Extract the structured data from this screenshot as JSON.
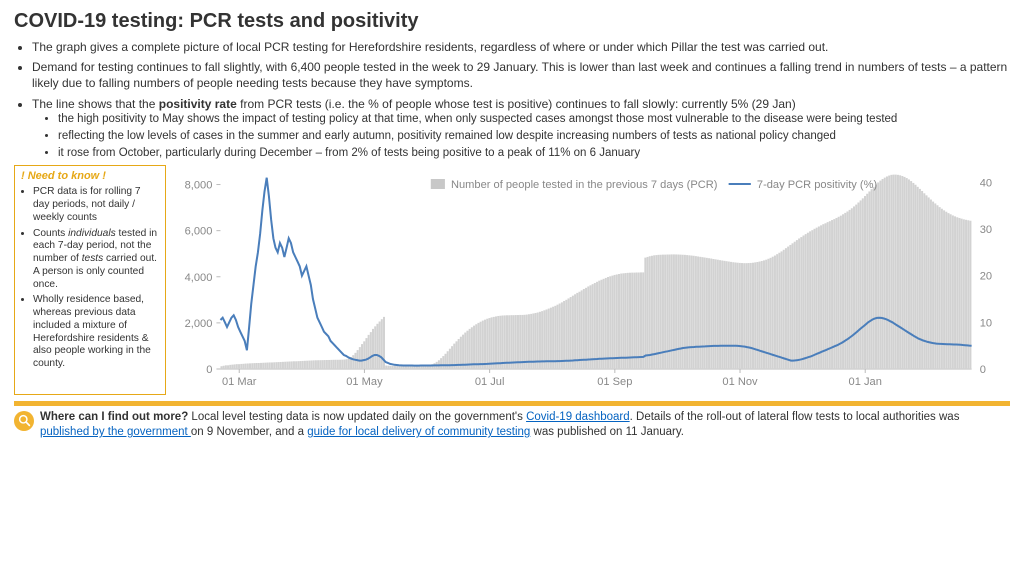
{
  "title": "COVID-19 testing: PCR tests and positivity",
  "bullets": {
    "b1": "The graph gives a complete picture of local PCR testing for Herefordshire residents, regardless of where or under which Pillar the test was carried out.",
    "b2": "Demand for testing continues to fall slightly, with 6,400 people tested in the week to 29 January.  This is lower than last week and continues a falling trend in numbers of tests – a pattern likely due to falling numbers of people needing tests because they have symptoms.",
    "b3_pre": "The line shows that the ",
    "b3_bold": "positivity rate",
    "b3_post": " from PCR tests (i.e. the % of people whose test is positive) continues to fall slowly: currently 5% (29 Jan)",
    "s1": "the high positivity to May shows the impact of testing policy at that time, when only suspected cases amongst those most vulnerable to the disease were being tested",
    "s2": "reflecting the low levels of cases in the summer and early autumn, positivity remained low despite increasing numbers of tests as national policy changed",
    "s3": "it rose from October, particularly during December – from 2% of tests being positive to a peak of 11% on 6 January"
  },
  "needbox": {
    "title": "! Need to know !",
    "n1": "PCR data is for rolling 7 day periods, not daily / weekly counts",
    "n2_pre": "Counts ",
    "n2_em1": "individuals",
    "n2_mid": " tested in each 7-day period, not the number of ",
    "n2_em2": "tests",
    "n2_post": " carried out. A person is only counted once.",
    "n3": "Wholly residence based, whereas previous data included a mixture of Herefordshire residents & also people working in the county."
  },
  "chart": {
    "legend_bars": "Number of people tested in the previous 7 days (PCR)",
    "legend_line": "7-day PCR positivity (%)",
    "y_left_ticks": [
      "0",
      "2,000",
      "4,000",
      "6,000",
      "8,000"
    ],
    "y_left_max": 8500,
    "y_right_ticks": [
      "0",
      "10",
      "20",
      "30",
      "40"
    ],
    "y_right_max": 42,
    "x_labels": [
      "01 Mar",
      "01 May",
      "01 Jul",
      "01 Sep",
      "01 Nov",
      "01 Jan"
    ],
    "bar_vals": [
      120,
      140,
      160,
      160,
      180,
      190,
      200,
      210,
      210,
      220,
      225,
      235,
      240,
      245,
      250,
      255,
      260,
      260,
      265,
      270,
      275,
      280,
      285,
      285,
      290,
      295,
      300,
      305,
      310,
      315,
      320,
      325,
      330,
      335,
      335,
      340,
      345,
      350,
      355,
      360,
      365,
      370,
      375,
      378,
      380,
      382,
      385,
      388,
      390,
      392,
      395,
      398,
      400,
      400,
      402,
      405,
      410,
      425,
      460,
      520,
      600,
      700,
      820,
      950,
      1080,
      1200,
      1340,
      1480,
      1600,
      1740,
      1850,
      1960,
      2060,
      2160,
      2260,
      150,
      145,
      140,
      138,
      136,
      135,
      134,
      133,
      132,
      132,
      131,
      131,
      130,
      131,
      132,
      134,
      138,
      145,
      155,
      168,
      185,
      210,
      250,
      310,
      380,
      470,
      560,
      660,
      770,
      880,
      990,
      1100,
      1200,
      1300,
      1400,
      1490,
      1580,
      1660,
      1740,
      1810,
      1880,
      1940,
      2000,
      2050,
      2100,
      2140,
      2180,
      2210,
      2240,
      2260,
      2280,
      2300,
      2310,
      2320,
      2325,
      2330,
      2330,
      2335,
      2335,
      2340,
      2340,
      2345,
      2345,
      2350,
      2360,
      2375,
      2390,
      2410,
      2430,
      2450,
      2480,
      2510,
      2545,
      2580,
      2620,
      2660,
      2700,
      2740,
      2790,
      2840,
      2890,
      2950,
      3000,
      3060,
      3120,
      3180,
      3240,
      3300,
      3350,
      3410,
      3470,
      3520,
      3580,
      3630,
      3680,
      3730,
      3780,
      3830,
      3870,
      3910,
      3950,
      3990,
      4020,
      4050,
      4080,
      4100,
      4120,
      4140,
      4150,
      4160,
      4170,
      4175,
      4180,
      4180,
      4185,
      4185,
      4190,
      4190,
      4830,
      4860,
      4890,
      4910,
      4930,
      4940,
      4950,
      4955,
      4960,
      4960,
      4965,
      4965,
      4970,
      4970,
      4968,
      4965,
      4960,
      4955,
      4950,
      4940,
      4930,
      4920,
      4910,
      4895,
      4880,
      4865,
      4850,
      4835,
      4820,
      4805,
      4790,
      4770,
      4755,
      4740,
      4720,
      4705,
      4690,
      4675,
      4660,
      4645,
      4630,
      4620,
      4610,
      4600,
      4595,
      4590,
      4590,
      4595,
      4600,
      4610,
      4625,
      4640,
      4660,
      4685,
      4710,
      4740,
      4780,
      4820,
      4870,
      4920,
      4980,
      5040,
      5100,
      5170,
      5240,
      5310,
      5380,
      5450,
      5520,
      5590,
      5660,
      5720,
      5790,
      5850,
      5910,
      5970,
      6020,
      6080,
      6130,
      6180,
      6230,
      6280,
      6320,
      6370,
      6410,
      6460,
      6500,
      6550,
      6600,
      6650,
      6710,
      6770,
      6830,
      6900,
      6970,
      7050,
      7130,
      7220,
      7310,
      7400,
      7500,
      7600,
      7700,
      7800,
      7900,
      8000,
      8090,
      8170,
      8240,
      8300,
      8350,
      8390,
      8420,
      8430,
      8430,
      8420,
      8400,
      8370,
      8330,
      8280,
      8220,
      8150,
      8070,
      7990,
      7900,
      7810,
      7720,
      7620,
      7530,
      7440,
      7350,
      7260,
      7180,
      7100,
      7020,
      6950,
      6880,
      6820,
      6760,
      6710,
      6660,
      6620,
      6580,
      6550,
      6520,
      6490,
      6470,
      6450,
      6430
    ],
    "line_vals": [
      10.5,
      11,
      10,
      9,
      10,
      11,
      11.5,
      10.5,
      9,
      8,
      7,
      6,
      4,
      9,
      14,
      18,
      22,
      25,
      29,
      34,
      38,
      41,
      37,
      32,
      28,
      26,
      25,
      27,
      26,
      24,
      26,
      28,
      27,
      25,
      24,
      23,
      22,
      20,
      21,
      22,
      20,
      18,
      15,
      13,
      11,
      10,
      9,
      8,
      7.5,
      7,
      6,
      5.5,
      5,
      4.5,
      4,
      3.5,
      3,
      2.8,
      2.5,
      2.3,
      2.1,
      2,
      1.9,
      1.8,
      1.8,
      1.9,
      2,
      2.2,
      2.5,
      2.8,
      3,
      3,
      2.8,
      2.5,
      2,
      1.5,
      1.3,
      1.1,
      1,
      0.9,
      0.85,
      0.8,
      0.78,
      0.76,
      0.75,
      0.75,
      0.74,
      0.74,
      0.73,
      0.73,
      0.73,
      0.74,
      0.74,
      0.75,
      0.75,
      0.76,
      0.76,
      0.77,
      0.78,
      0.78,
      0.79,
      0.8,
      0.8,
      0.81,
      0.82,
      0.83,
      0.84,
      0.85,
      0.87,
      0.88,
      0.9,
      0.92,
      0.94,
      0.96,
      0.98,
      1,
      1,
      1.02,
      1.04,
      1.06,
      1.08,
      1.1,
      1.13,
      1.15,
      1.18,
      1.2,
      1.23,
      1.25,
      1.28,
      1.3,
      1.33,
      1.35,
      1.38,
      1.4,
      1.42,
      1.44,
      1.46,
      1.48,
      1.5,
      1.52,
      1.54,
      1.55,
      1.57,
      1.58,
      1.6,
      1.61,
      1.62,
      1.63,
      1.64,
      1.65,
      1.66,
      1.67,
      1.68,
      1.69,
      1.7,
      1.72,
      1.74,
      1.76,
      1.78,
      1.8,
      1.83,
      1.86,
      1.89,
      1.92,
      1.95,
      1.98,
      2,
      2.03,
      2.06,
      2.09,
      2.12,
      2.15,
      2.18,
      2.2,
      2.23,
      2.25,
      2.27,
      2.29,
      2.31,
      2.33,
      2.35,
      2.37,
      2.39,
      2.41,
      2.43,
      2.45,
      2.47,
      2.49,
      2.51,
      2.53,
      2.55,
      2.57,
      2.59,
      2.9,
      2.95,
      3,
      3.1,
      3.2,
      3.3,
      3.4,
      3.5,
      3.6,
      3.7,
      3.8,
      3.9,
      4,
      4.1,
      4.2,
      4.3,
      4.4,
      4.5,
      4.55,
      4.6,
      4.65,
      4.7,
      4.72,
      4.75,
      4.78,
      4.8,
      4.82,
      4.85,
      4.88,
      4.9,
      4.92,
      4.94,
      4.95,
      4.96,
      4.97,
      4.98,
      4.99,
      5,
      5,
      5,
      5,
      4.98,
      4.95,
      4.9,
      4.85,
      4.8,
      4.7,
      4.6,
      4.5,
      4.35,
      4.2,
      4.05,
      3.9,
      3.75,
      3.6,
      3.45,
      3.3,
      3.15,
      3,
      2.85,
      2.7,
      2.55,
      2.4,
      2.25,
      2.1,
      1.95,
      1.8,
      1.8,
      1.85,
      1.9,
      2,
      2.1,
      2.25,
      2.4,
      2.55,
      2.7,
      2.9,
      3.1,
      3.3,
      3.5,
      3.7,
      3.9,
      4.1,
      4.3,
      4.5,
      4.7,
      4.9,
      5.1,
      5.35,
      5.6,
      5.9,
      6.2,
      6.5,
      6.85,
      7.2,
      7.6,
      8,
      8.4,
      8.8,
      9.2,
      9.6,
      10,
      10.3,
      10.6,
      10.8,
      10.95,
      11,
      10.95,
      10.85,
      10.7,
      10.5,
      10.25,
      10,
      9.7,
      9.4,
      9.1,
      8.8,
      8.5,
      8.2,
      7.9,
      7.6,
      7.3,
      7,
      6.75,
      6.5,
      6.3,
      6.1,
      5.95,
      5.8,
      5.7,
      5.6,
      5.5,
      5.45,
      5.4,
      5.38,
      5.36,
      5.34,
      5.32,
      5.3,
      5.28,
      5.26,
      5.24,
      5.22,
      5.2,
      5.15,
      5.1,
      5.05,
      5.02,
      5
    ],
    "colors": {
      "bar": "#d2d2d2",
      "line": "#4a7ebb",
      "axis_text": "#888888",
      "axis_line": "#bbbbbb"
    }
  },
  "footer": {
    "lead_bold": "Where can I find out more?",
    "t1": " Local level testing data is now updated daily on the government's ",
    "link1": "Covid-19 dashboard",
    "t2": ". Details of the roll-out of lateral flow tests to local authorities was ",
    "link2": "published by the government ",
    "t3": "on 9 November, and a ",
    "link3": "guide for local delivery of community testing",
    "t4": " was published on 11 January."
  }
}
